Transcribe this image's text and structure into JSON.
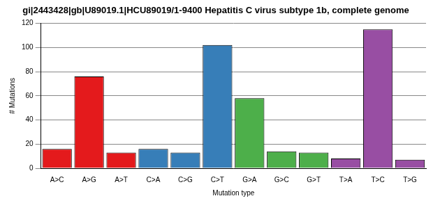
{
  "chart_data": {
    "type": "bar",
    "title": "gi|2443428|gb|U89019.1|HCU89019/1-9400 Hepatitis C virus subtype 1b, complete genome",
    "x_label": "Mutation type",
    "y_label": "# Mutations",
    "categories": [
      "A>C",
      "A>G",
      "A>T",
      "C>A",
      "C>G",
      "C>T",
      "G>A",
      "G>C",
      "G>T",
      "T>A",
      "T>C",
      "T>G"
    ],
    "values": [
      16,
      76,
      13,
      16,
      13,
      102,
      58,
      14,
      13,
      8,
      115,
      7
    ],
    "colors": [
      "#e41a1c",
      "#e41a1c",
      "#e41a1c",
      "#377eb8",
      "#377eb8",
      "#377eb8",
      "#4daf4a",
      "#4daf4a",
      "#4daf4a",
      "#984ea3",
      "#984ea3",
      "#984ea3"
    ],
    "ylim": [
      0,
      120
    ],
    "yticks": [
      0,
      20,
      40,
      60,
      80,
      100,
      120
    ],
    "grid": true
  }
}
